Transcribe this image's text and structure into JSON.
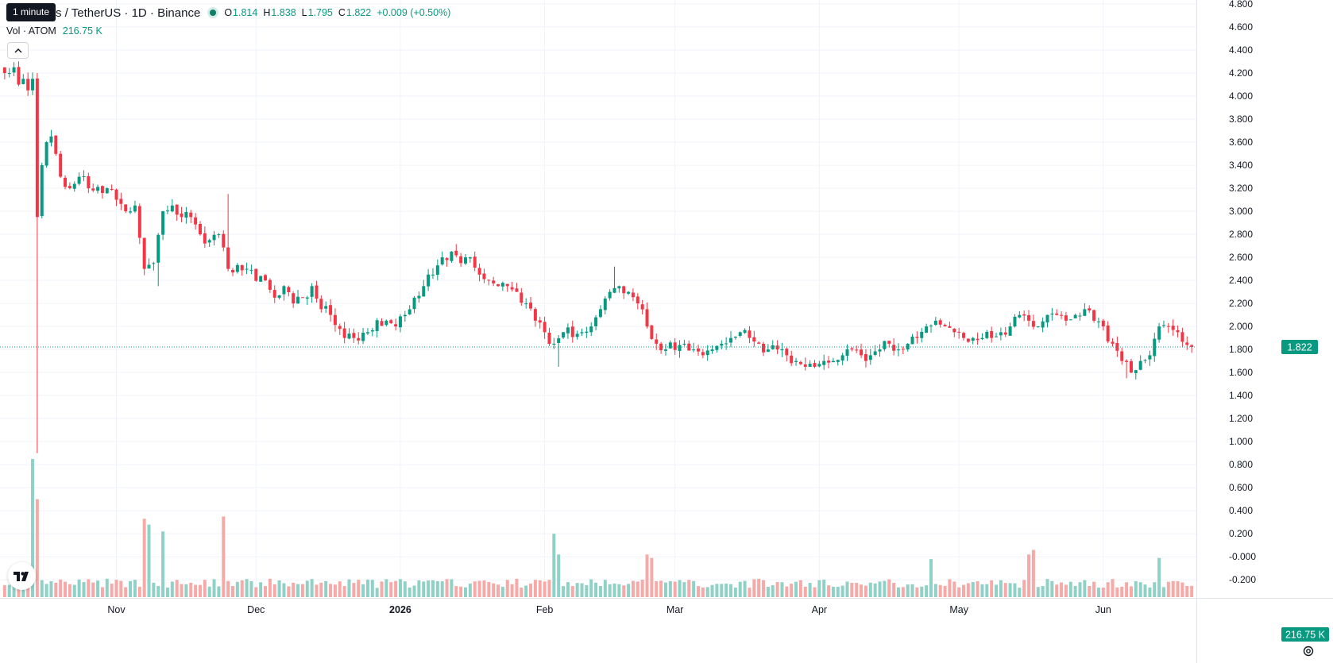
{
  "legend": {
    "tooltip": "1 minute",
    "symbol": "s / TetherUS · 1D · Binance",
    "open_label": "O",
    "open": "1.814",
    "high_label": "H",
    "high": "1.838",
    "low_label": "L",
    "low": "1.795",
    "close_label": "C",
    "close": "1.822",
    "change": "+0.009 (+0.50%)",
    "vol_label": "Vol · ATOM",
    "vol_value": "216.75 K"
  },
  "price_label": "1.822",
  "volume_label": "216.75 K",
  "icons": {
    "collapse": "chevron-up-icon",
    "logo": "tradingview-logo-icon",
    "settings": "gear-icon"
  },
  "colors": {
    "up": "#089981",
    "down": "#f23645",
    "up_volume": "#8fd1c6",
    "down_volume": "#f7a9a7",
    "grid": "#f0f3fa"
  },
  "chart_data": {
    "type": "candlestick",
    "y_ticks": [
      "4.800",
      "4.600",
      "4.400",
      "4.200",
      "4.000",
      "3.800",
      "3.600",
      "3.400",
      "3.200",
      "3.000",
      "2.800",
      "2.600",
      "2.400",
      "2.200",
      "2.000",
      "1.800",
      "1.600",
      "1.400",
      "1.200",
      "1.000",
      "0.800",
      "0.600",
      "0.400",
      "0.200",
      "-0.000",
      "-0.200"
    ],
    "y_range": [
      -0.35,
      4.8
    ],
    "x_ticks": [
      {
        "label": "Nov",
        "day": 24
      },
      {
        "label": "Dec",
        "day": 54
      },
      {
        "label": "2026",
        "day": 85
      },
      {
        "label": "Feb",
        "day": 116
      },
      {
        "label": "Mar",
        "day": 144
      },
      {
        "label": "Apr",
        "day": 175
      },
      {
        "label": "May",
        "day": 205
      },
      {
        "label": "Jun",
        "day": 236
      }
    ],
    "x_range": [
      -1,
      256
    ],
    "last_price": 1.822,
    "anchors": [
      [
        0,
        4.2
      ],
      [
        1,
        4.2
      ],
      [
        2,
        4.25
      ],
      [
        3,
        4.1
      ],
      [
        4,
        4.15
      ],
      [
        5,
        4.05
      ],
      [
        6,
        4.15
      ],
      [
        7,
        2.95
      ],
      [
        8,
        3.4
      ],
      [
        9,
        3.6
      ],
      [
        10,
        3.65
      ],
      [
        12,
        3.3
      ],
      [
        14,
        3.2
      ],
      [
        16,
        3.3
      ],
      [
        18,
        3.2
      ],
      [
        22,
        3.2
      ],
      [
        24,
        3.1
      ],
      [
        26,
        3.0
      ],
      [
        28,
        3.05
      ],
      [
        30,
        2.5
      ],
      [
        32,
        2.55
      ],
      [
        34,
        3.0
      ],
      [
        36,
        3.05
      ],
      [
        38,
        2.95
      ],
      [
        40,
        2.95
      ],
      [
        42,
        2.8
      ],
      [
        44,
        2.75
      ],
      [
        46,
        2.8
      ],
      [
        48,
        2.5
      ],
      [
        52,
        2.5
      ],
      [
        56,
        2.4
      ],
      [
        58,
        2.25
      ],
      [
        60,
        2.35
      ],
      [
        62,
        2.2
      ],
      [
        64,
        2.25
      ],
      [
        66,
        2.35
      ],
      [
        68,
        2.15
      ],
      [
        70,
        2.1
      ],
      [
        73,
        1.9
      ],
      [
        75,
        1.9
      ],
      [
        78,
        1.95
      ],
      [
        82,
        2.05
      ],
      [
        84,
        2.0
      ],
      [
        86,
        2.1
      ],
      [
        88,
        2.25
      ],
      [
        90,
        2.35
      ],
      [
        92,
        2.45
      ],
      [
        94,
        2.6
      ],
      [
        96,
        2.65
      ],
      [
        98,
        2.55
      ],
      [
        100,
        2.6
      ],
      [
        102,
        2.45
      ],
      [
        104,
        2.4
      ],
      [
        106,
        2.35
      ],
      [
        108,
        2.35
      ],
      [
        110,
        2.3
      ],
      [
        112,
        2.2
      ],
      [
        114,
        2.05
      ],
      [
        116,
        1.95
      ],
      [
        118,
        1.85
      ],
      [
        120,
        1.95
      ],
      [
        124,
        1.95
      ],
      [
        126,
        2.0
      ],
      [
        128,
        2.15
      ],
      [
        130,
        2.3
      ],
      [
        132,
        2.35
      ],
      [
        134,
        2.3
      ],
      [
        136,
        2.2
      ],
      [
        138,
        2.0
      ],
      [
        140,
        1.85
      ],
      [
        142,
        1.8
      ],
      [
        146,
        1.85
      ],
      [
        148,
        1.8
      ],
      [
        150,
        1.75
      ],
      [
        152,
        1.8
      ],
      [
        154,
        1.85
      ],
      [
        156,
        1.9
      ],
      [
        158,
        1.95
      ],
      [
        160,
        1.9
      ],
      [
        162,
        1.85
      ],
      [
        164,
        1.8
      ],
      [
        166,
        1.8
      ],
      [
        168,
        1.75
      ],
      [
        170,
        1.7
      ],
      [
        172,
        1.65
      ],
      [
        174,
        1.65
      ],
      [
        176,
        1.7
      ],
      [
        178,
        1.7
      ],
      [
        180,
        1.75
      ],
      [
        182,
        1.8
      ],
      [
        184,
        1.75
      ],
      [
        186,
        1.75
      ],
      [
        188,
        1.8
      ],
      [
        190,
        1.85
      ],
      [
        192,
        1.8
      ],
      [
        194,
        1.85
      ],
      [
        196,
        1.9
      ],
      [
        198,
        2.0
      ],
      [
        200,
        2.05
      ],
      [
        202,
        2.0
      ],
      [
        204,
        1.95
      ],
      [
        206,
        1.9
      ],
      [
        208,
        1.9
      ],
      [
        210,
        1.9
      ],
      [
        212,
        1.9
      ],
      [
        214,
        1.95
      ],
      [
        216,
        2.0
      ],
      [
        218,
        2.1
      ],
      [
        220,
        2.05
      ],
      [
        222,
        2.0
      ],
      [
        224,
        2.1
      ],
      [
        226,
        2.1
      ],
      [
        228,
        2.05
      ],
      [
        230,
        2.1
      ],
      [
        232,
        2.15
      ],
      [
        234,
        2.05
      ],
      [
        236,
        2.0
      ],
      [
        238,
        1.85
      ],
      [
        240,
        1.7
      ],
      [
        242,
        1.6
      ],
      [
        244,
        1.7
      ],
      [
        246,
        1.75
      ],
      [
        248,
        2.0
      ],
      [
        250,
        2.0
      ],
      [
        252,
        1.95
      ],
      [
        254,
        1.84
      ],
      [
        255,
        1.822
      ]
    ],
    "volume_spikes": [
      [
        6,
        0.85
      ],
      [
        7,
        0.5
      ],
      [
        30,
        0.33
      ],
      [
        31,
        0.28
      ],
      [
        34,
        0.22
      ],
      [
        47,
        0.35
      ],
      [
        118,
        0.2
      ],
      [
        119,
        0.02
      ],
      [
        138,
        0.02
      ],
      [
        139,
        -0.01
      ],
      [
        199,
        -0.02
      ],
      [
        220,
        0.02
      ],
      [
        221,
        0.06
      ],
      [
        248,
        -0.01
      ]
    ]
  }
}
